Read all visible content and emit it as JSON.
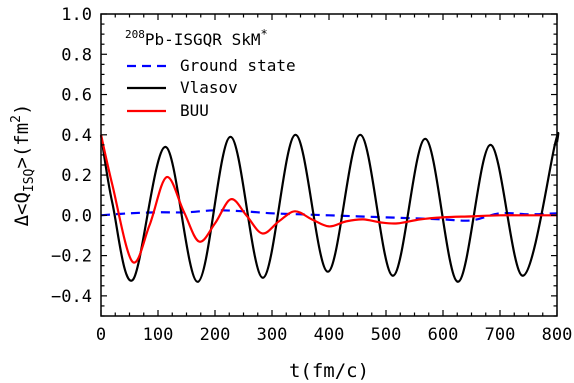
{
  "chart_data": {
    "type": "line",
    "title": "",
    "xlabel": "t(fm/c)",
    "ylabel_main": "Δ<Q",
    "ylabel_sub": "ISQ",
    "ylabel_tail": ">(fm",
    "ylabel_sup": "2",
    "ylabel_close": ")",
    "xlim": [
      0,
      800
    ],
    "ylim": [
      -0.5,
      1.0
    ],
    "x_ticks": [
      0,
      100,
      200,
      300,
      400,
      500,
      600,
      700,
      800
    ],
    "y_ticks": [
      -0.4,
      -0.2,
      0.0,
      0.2,
      0.4,
      0.6,
      0.8,
      1.0
    ],
    "x_tick_labels": [
      "0",
      "100",
      "200",
      "300",
      "400",
      "500",
      "600",
      "700",
      "800"
    ],
    "y_tick_labels": [
      "−0.4",
      "−0.2",
      "0.0",
      "0.2",
      "0.4",
      "0.6",
      "0.8",
      "1.0"
    ],
    "grid": false,
    "legend": {
      "placement": "top-left",
      "title_sup": "208",
      "title_main": "Pb-ISGQR SkM",
      "title_star": "*"
    },
    "series": [
      {
        "name": "Ground state",
        "color": "#0000ff",
        "dash": "dashed",
        "x": [
          0,
          50,
          100,
          150,
          200,
          250,
          300,
          350,
          400,
          450,
          500,
          550,
          600,
          650,
          700,
          750,
          800
        ],
        "y": [
          0.0,
          0.01,
          0.015,
          0.015,
          0.025,
          0.02,
          0.01,
          0.005,
          0.0,
          -0.005,
          -0.01,
          -0.015,
          -0.02,
          -0.025,
          0.01,
          0.005,
          0.01
        ]
      },
      {
        "name": "Vlasov",
        "color": "#000000",
        "dash": "solid",
        "x": [
          0,
          20,
          56,
          113,
          170,
          227,
          284,
          341,
          398,
          455,
          512,
          569,
          626,
          683,
          740,
          797,
          800
        ],
        "y": [
          0.4,
          0.06,
          -0.32,
          0.34,
          -0.33,
          0.39,
          -0.31,
          0.4,
          -0.28,
          0.4,
          -0.3,
          0.38,
          -0.33,
          0.35,
          -0.3,
          0.36,
          0.36
        ]
      },
      {
        "name": "BUU",
        "color": "#ff0000",
        "dash": "solid",
        "x": [
          0,
          20,
          55,
          85,
          115,
          145,
          172,
          200,
          228,
          255,
          283,
          312,
          340,
          370,
          400,
          430,
          460,
          490,
          520,
          560,
          600,
          650,
          700,
          750,
          800
        ],
        "y": [
          0.4,
          0.15,
          -0.23,
          -0.05,
          0.19,
          0.02,
          -0.13,
          -0.04,
          0.08,
          0.0,
          -0.09,
          -0.03,
          0.02,
          -0.02,
          -0.055,
          -0.03,
          -0.02,
          -0.035,
          -0.04,
          -0.02,
          -0.01,
          -0.005,
          0.0,
          0.0,
          0.0
        ]
      }
    ]
  }
}
